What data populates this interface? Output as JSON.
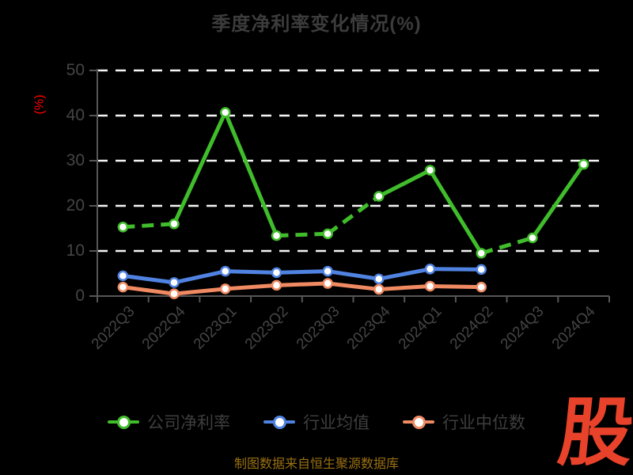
{
  "title": "季度净利率变化情况(%)",
  "y_axis_name": "(%)",
  "footer_note": "制图数据来自恒生聚源数据库",
  "logo_text": "股",
  "colors": {
    "bg": "#000000",
    "title": "#3c3c3c",
    "axis": "#565656",
    "grid": "#f5f5f5",
    "tick_label": "#454545",
    "legend_label": "#3e3e3e",
    "y_name": "#ff0000",
    "footer": "#9a7012",
    "logo": "#e8432a"
  },
  "chart_data": {
    "type": "line",
    "title": "季度净利率变化情况(%)",
    "xlabel": "",
    "ylabel": "(%)",
    "ylim": [
      0,
      50
    ],
    "y_ticks": [
      0,
      10,
      20,
      30,
      40,
      50
    ],
    "grid": true,
    "grid_style": "dashed",
    "legend_position": "bottom",
    "categories": [
      "2022Q3",
      "2022Q4",
      "2023Q1",
      "2023Q2",
      "2023Q3",
      "2023Q4",
      "2024Q1",
      "2024Q2",
      "2024Q3",
      "2024Q4"
    ],
    "series": [
      {
        "name": "公司净利率",
        "color": "#40bd2b",
        "values": [
          15.3,
          16.0,
          40.7,
          13.4,
          13.8,
          22.1,
          27.9,
          9.5,
          12.9,
          29.2
        ],
        "dashed_segments": [
          0,
          3,
          4,
          7
        ]
      },
      {
        "name": "行业均值",
        "color": "#5083e1",
        "values": [
          4.5,
          3.0,
          5.5,
          5.2,
          5.5,
          3.8,
          6.0,
          5.9
        ],
        "dashed_segments": []
      },
      {
        "name": "行业中位数",
        "color": "#f08a62",
        "values": [
          2.0,
          0.5,
          1.6,
          2.4,
          2.8,
          1.5,
          2.2,
          2.0
        ],
        "dashed_segments": []
      }
    ]
  }
}
